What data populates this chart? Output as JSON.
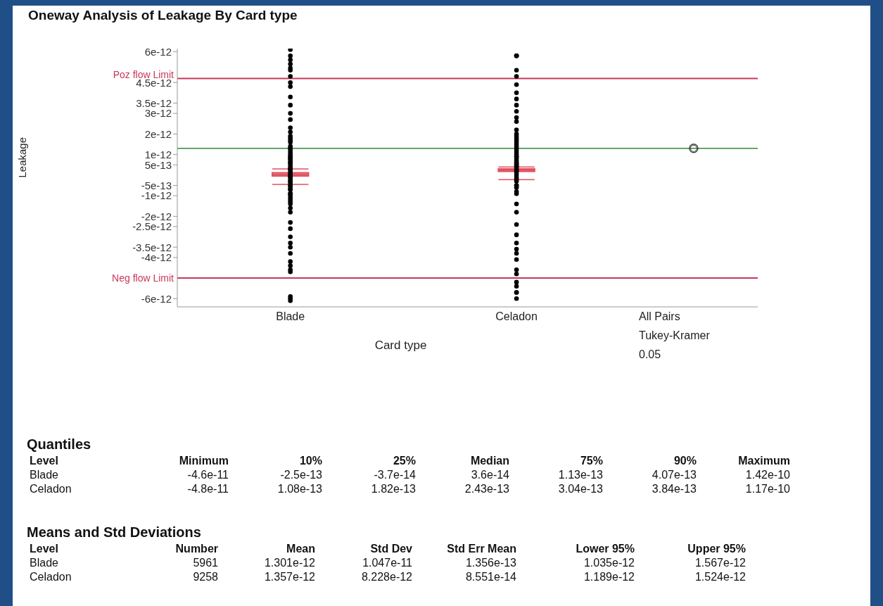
{
  "chart_data": [
    {
      "type": "scatter",
      "title": "Oneway Analysis of Leakage By Card type",
      "xlabel": "Card type",
      "ylabel": "Leakage",
      "categories": [
        "Blade",
        "Celadon"
      ],
      "ylim": [
        -6.4e-12,
        6.15e-12
      ],
      "yticks": [
        6e-12,
        4.5e-12,
        3.5e-12,
        3e-12,
        2e-12,
        1e-12,
        5e-13,
        -5e-13,
        -1e-12,
        -2e-12,
        -2.5e-12,
        -3.5e-12,
        -4e-12,
        -6e-12
      ],
      "series": [
        {
          "color": "#000000",
          "x": [
            "Blade",
            "Blade",
            "Blade",
            "Blade",
            "Blade",
            "Blade",
            "Blade",
            "Blade",
            "Blade",
            "Blade",
            "Blade",
            "Blade",
            "Blade",
            "Blade",
            "Blade",
            "Blade",
            "Blade",
            "Blade",
            "Blade",
            "Blade",
            "Blade",
            "Blade",
            "Blade",
            "Blade",
            "Blade",
            "Blade",
            "Blade",
            "Blade",
            "Blade",
            "Blade",
            "Blade",
            "Blade",
            "Blade",
            "Blade",
            "Blade",
            "Blade",
            "Blade",
            "Blade",
            "Blade",
            "Blade",
            "Blade",
            "Blade",
            "Blade",
            "Blade",
            "Blade",
            "Blade",
            "Blade",
            "Blade",
            "Blade",
            "Blade",
            "Blade",
            "Blade",
            "Blade",
            "Blade",
            "Blade",
            "Blade",
            "Blade",
            "Blade",
            "Blade",
            "Blade",
            "Blade",
            "Blade",
            "Blade",
            "Blade",
            "Blade",
            "Blade",
            "Blade",
            "Blade",
            "Blade",
            "Blade",
            "Blade",
            "Blade",
            "Blade",
            "Blade"
          ],
          "values": [
            6.1e-12,
            5.8e-12,
            5.6e-12,
            5.4e-12,
            5.2e-12,
            5.1e-12,
            4.8e-12,
            4.5e-12,
            4.3e-12,
            3.8e-12,
            3.4e-12,
            3e-12,
            2.7e-12,
            2.3e-12,
            2.1e-12,
            1.9e-12,
            1.7e-12,
            1.3e-12,
            1.2e-12,
            1e-12,
            1.4e-12,
            1.1e-12,
            9e-13,
            1.3e-12,
            6e-13,
            7e-13,
            8e-13,
            5e-13,
            6e-13,
            3e-13,
            2e-13,
            4e-13,
            3e-13,
            1e-13,
            -1e-13,
            -2e-13,
            0.0,
            -1e-13,
            -3e-13,
            -5e-13,
            -6e-13,
            -4e-13,
            -7e-13,
            -9e-13,
            -1e-12,
            -1.1e-12,
            -9e-13,
            -1.3e-12,
            -1.4e-12,
            -1.2e-12,
            1.6e-12,
            1.8e-12,
            0.0,
            3e-13,
            -3e-13,
            9e-13,
            8e-13,
            -5e-13,
            -7e-13,
            -1.6e-12,
            -1.8e-12,
            -2.3e-12,
            -2.6e-12,
            -3e-12,
            -3.5e-12,
            -3.3e-12,
            -3.8e-12,
            -4.2e-12,
            -4.4e-12,
            -4.6e-12,
            -4.7e-12,
            -6e-12,
            -6.1e-12,
            -5.9e-12
          ]
        },
        {
          "color": "#000000",
          "x": [
            "Celadon",
            "Celadon",
            "Celadon",
            "Celadon",
            "Celadon",
            "Celadon",
            "Celadon",
            "Celadon",
            "Celadon",
            "Celadon",
            "Celadon",
            "Celadon",
            "Celadon",
            "Celadon",
            "Celadon",
            "Celadon",
            "Celadon",
            "Celadon",
            "Celadon",
            "Celadon",
            "Celadon",
            "Celadon",
            "Celadon",
            "Celadon",
            "Celadon",
            "Celadon",
            "Celadon",
            "Celadon",
            "Celadon",
            "Celadon",
            "Celadon",
            "Celadon",
            "Celadon",
            "Celadon",
            "Celadon",
            "Celadon",
            "Celadon",
            "Celadon",
            "Celadon",
            "Celadon",
            "Celadon",
            "Celadon",
            "Celadon",
            "Celadon",
            "Celadon",
            "Celadon",
            "Celadon",
            "Celadon",
            "Celadon",
            "Celadon",
            "Celadon",
            "Celadon",
            "Celadon",
            "Celadon",
            "Celadon",
            "Celadon",
            "Celadon",
            "Celadon",
            "Celadon",
            "Celadon",
            "Celadon",
            "Celadon",
            "Celadon"
          ],
          "values": [
            5.8e-12,
            5.8e-12,
            5.8e-12,
            5.1e-12,
            4.8e-12,
            4.4e-12,
            4e-12,
            3.7e-12,
            3.4e-12,
            3.1e-12,
            2.8e-12,
            2.6e-12,
            2.2e-12,
            2e-12,
            1.8e-12,
            1.6e-12,
            1.4e-12,
            1.2e-12,
            1.5e-12,
            1.3e-12,
            1.1e-12,
            9e-13,
            1e-12,
            8e-13,
            7e-13,
            9e-13,
            5e-13,
            6e-13,
            4e-13,
            5e-13,
            3e-13,
            2e-13,
            1e-13,
            2e-13,
            0.0,
            4e-13,
            -2e-13,
            -1e-13,
            -3e-13,
            -2e-13,
            -5e-13,
            -6e-13,
            -8e-13,
            1.7e-12,
            1.9e-12,
            6e-13,
            -5e-13,
            -9e-13,
            -1.4e-12,
            -1.8e-12,
            -2.4e-12,
            -2.9e-12,
            -3.3e-12,
            -3.6e-12,
            -3.8e-12,
            -4.1e-12,
            -4.8e-12,
            -4.6e-12,
            -5.2e-12,
            -5.4e-12,
            -5.7e-12,
            -6e-12,
            -5.7e-12
          ]
        },
        {
          "type": "box",
          "color": "#e0505e",
          "boxes": [
            {
              "low": -4.5e-13,
              "q1": -3.7e-14,
              "median": 3.6e-14,
              "q3": 1.13e-13,
              "high": 3e-13
            },
            {
              "low": -2.2e-13,
              "q1": 1.82e-13,
              "median": 2.43e-13,
              "q3": 3.04e-13,
              "high": 4e-13
            }
          ]
        }
      ],
      "ref_lines": [
        {
          "axis": "y",
          "value": 4.7e-12,
          "label": "Poz flow Limit",
          "color": "#c8375a"
        },
        {
          "axis": "y",
          "value": -5e-12,
          "label": "Neg flow Limit",
          "color": "#c8375a"
        },
        {
          "axis": "y",
          "value": 1.3e-12,
          "color": "#2e8b3a"
        }
      ]
    },
    {
      "type": "other",
      "annotations": [
        "All Pairs",
        "Tukey-Kramer",
        "0.05"
      ]
    },
    {
      "type": "other",
      "title": "Quantiles",
      "ylabel": "Level",
      "categories": [
        "Minimum",
        "10%",
        "25%",
        "Median",
        "75%",
        "90%",
        "Maximum"
      ],
      "y_categories": [
        "Blade",
        "Celadon"
      ],
      "cell_labels": [
        [
          "-4.6e-11",
          "-2.5e-13",
          "-3.7e-14",
          "3.6e-14",
          "1.13e-13",
          "4.07e-13",
          "1.42e-10"
        ],
        [
          "-4.8e-11",
          "1.08e-13",
          "1.82e-13",
          "2.43e-13",
          "3.04e-13",
          "3.84e-13",
          "1.17e-10"
        ]
      ]
    },
    {
      "type": "other",
      "title": "Means and Std Deviations",
      "ylabel": "Level",
      "categories": [
        "Number",
        "Mean",
        "Std Dev",
        "Std Err Mean",
        "Lower 95%",
        "Upper 95%"
      ],
      "y_categories": [
        "Blade",
        "Celadon"
      ],
      "cell_labels": [
        [
          "5961",
          "1.301e-12",
          "1.047e-11",
          "1.356e-13",
          "1.035e-12",
          "1.567e-12"
        ],
        [
          "9258",
          "1.357e-12",
          "8.228e-12",
          "8.551e-14",
          "1.189e-12",
          "1.524e-12"
        ]
      ]
    }
  ]
}
